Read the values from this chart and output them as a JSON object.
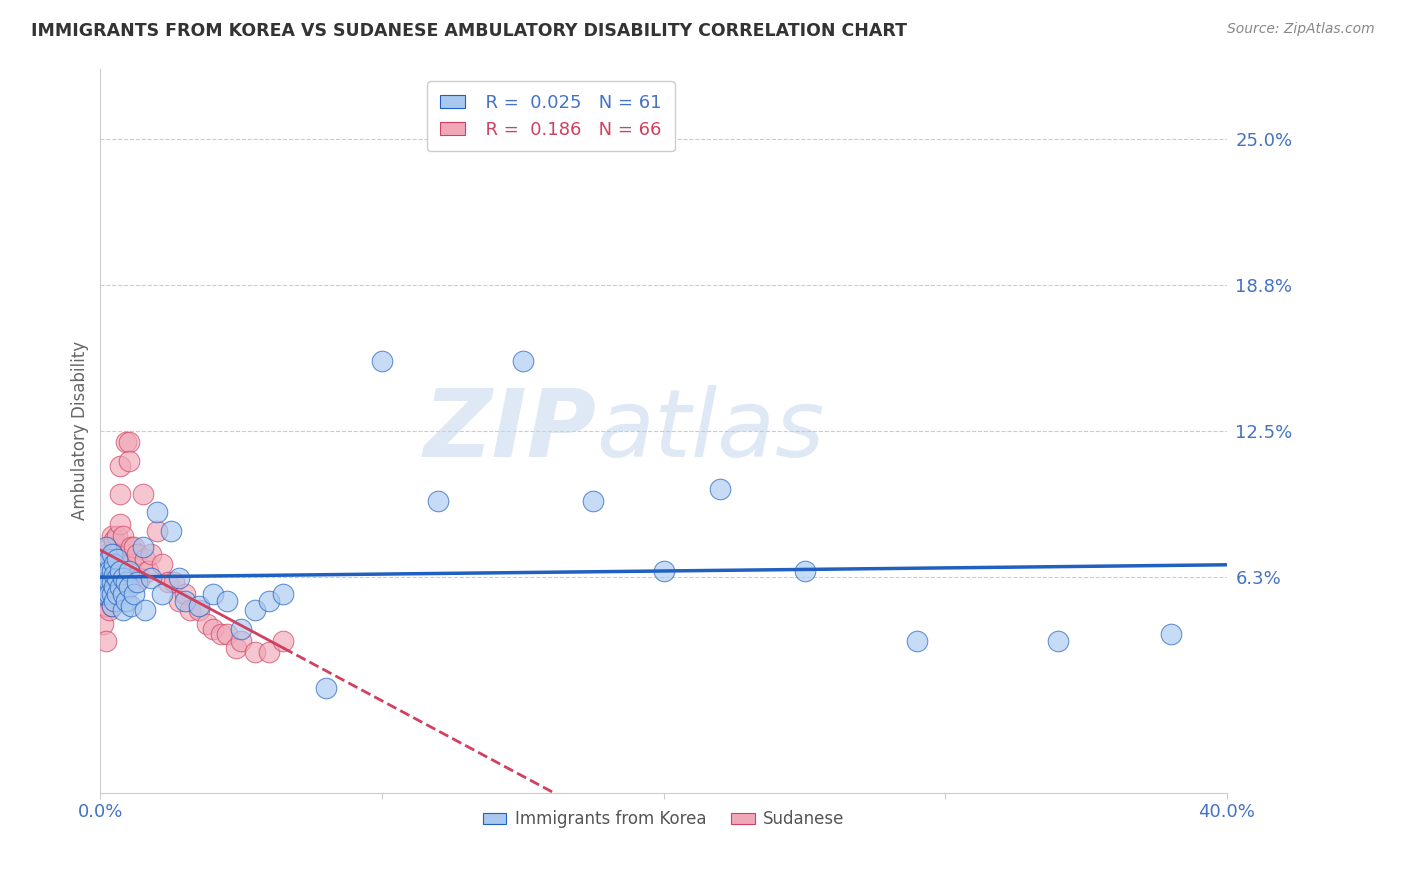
{
  "title": "IMMIGRANTS FROM KOREA VS SUDANESE AMBULATORY DISABILITY CORRELATION CHART",
  "source": "Source: ZipAtlas.com",
  "ylabel": "Ambulatory Disability",
  "xlim": [
    0.0,
    0.4
  ],
  "ylim": [
    -0.03,
    0.28
  ],
  "legend_korea_r": "0.025",
  "legend_korea_n": "61",
  "legend_sudanese_r": "0.186",
  "legend_sudanese_n": "66",
  "korea_color": "#a8c8f0",
  "sudanese_color": "#f0a8b8",
  "korea_line_color": "#2060c0",
  "sudanese_line_color": "#d04060",
  "watermark_zip": "ZIP",
  "watermark_atlas": "atlas",
  "korea_scatter_x": [
    0.001,
    0.001,
    0.001,
    0.002,
    0.002,
    0.002,
    0.002,
    0.003,
    0.003,
    0.003,
    0.003,
    0.004,
    0.004,
    0.004,
    0.004,
    0.004,
    0.005,
    0.005,
    0.005,
    0.005,
    0.006,
    0.006,
    0.006,
    0.007,
    0.007,
    0.008,
    0.008,
    0.008,
    0.009,
    0.009,
    0.01,
    0.01,
    0.011,
    0.012,
    0.013,
    0.015,
    0.016,
    0.018,
    0.02,
    0.022,
    0.025,
    0.028,
    0.03,
    0.035,
    0.04,
    0.045,
    0.05,
    0.055,
    0.06,
    0.065,
    0.08,
    0.1,
    0.12,
    0.15,
    0.175,
    0.2,
    0.22,
    0.25,
    0.29,
    0.34,
    0.38
  ],
  "korea_scatter_y": [
    0.068,
    0.06,
    0.055,
    0.075,
    0.065,
    0.06,
    0.055,
    0.07,
    0.065,
    0.06,
    0.055,
    0.072,
    0.065,
    0.06,
    0.055,
    0.05,
    0.068,
    0.063,
    0.058,
    0.052,
    0.07,
    0.062,
    0.055,
    0.065,
    0.058,
    0.062,
    0.055,
    0.048,
    0.06,
    0.052,
    0.065,
    0.058,
    0.05,
    0.055,
    0.06,
    0.075,
    0.048,
    0.062,
    0.09,
    0.055,
    0.082,
    0.062,
    0.052,
    0.05,
    0.055,
    0.052,
    0.04,
    0.048,
    0.052,
    0.055,
    0.015,
    0.155,
    0.095,
    0.155,
    0.095,
    0.065,
    0.1,
    0.065,
    0.035,
    0.035,
    0.038
  ],
  "sudanese_scatter_x": [
    0.001,
    0.001,
    0.001,
    0.001,
    0.002,
    0.002,
    0.002,
    0.002,
    0.002,
    0.003,
    0.003,
    0.003,
    0.003,
    0.003,
    0.004,
    0.004,
    0.004,
    0.004,
    0.004,
    0.005,
    0.005,
    0.005,
    0.005,
    0.006,
    0.006,
    0.006,
    0.006,
    0.007,
    0.007,
    0.007,
    0.007,
    0.008,
    0.008,
    0.008,
    0.009,
    0.009,
    0.01,
    0.01,
    0.01,
    0.011,
    0.011,
    0.012,
    0.012,
    0.013,
    0.014,
    0.015,
    0.016,
    0.017,
    0.018,
    0.02,
    0.022,
    0.024,
    0.026,
    0.028,
    0.03,
    0.032,
    0.035,
    0.038,
    0.04,
    0.043,
    0.045,
    0.048,
    0.05,
    0.055,
    0.06,
    0.065
  ],
  "sudanese_scatter_y": [
    0.055,
    0.068,
    0.062,
    0.042,
    0.072,
    0.065,
    0.058,
    0.05,
    0.035,
    0.075,
    0.068,
    0.062,
    0.055,
    0.048,
    0.08,
    0.072,
    0.065,
    0.058,
    0.05,
    0.078,
    0.07,
    0.062,
    0.055,
    0.08,
    0.072,
    0.062,
    0.055,
    0.11,
    0.098,
    0.085,
    0.065,
    0.08,
    0.07,
    0.058,
    0.12,
    0.068,
    0.12,
    0.112,
    0.062,
    0.075,
    0.068,
    0.075,
    0.062,
    0.072,
    0.062,
    0.098,
    0.07,
    0.065,
    0.072,
    0.082,
    0.068,
    0.06,
    0.06,
    0.052,
    0.055,
    0.048,
    0.048,
    0.042,
    0.04,
    0.038,
    0.038,
    0.032,
    0.035,
    0.03,
    0.03,
    0.035
  ],
  "grid_color": "#cccccc",
  "title_color": "#333333",
  "axis_label_color": "#4472c4",
  "background_color": "#ffffff",
  "ytick_vals": [
    0.0625,
    0.125,
    0.1875,
    0.25
  ],
  "ytick_labels": [
    "6.3%",
    "12.5%",
    "18.8%",
    "25.0%"
  ],
  "xtick_vals": [
    0.0,
    0.1,
    0.2,
    0.3,
    0.4
  ],
  "xtick_labels": [
    "0.0%",
    "",
    "",
    "",
    "40.0%"
  ]
}
